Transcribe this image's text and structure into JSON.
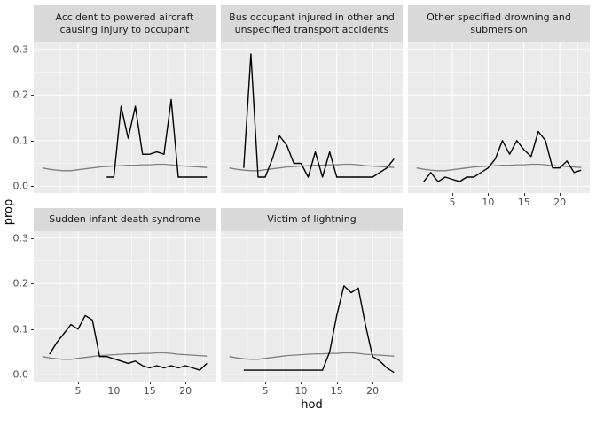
{
  "chart_data": {
    "type": "line",
    "title": "",
    "xlabel": "hod",
    "ylabel": "prop",
    "xlim": [
      -1.2,
      24.2
    ],
    "ylim": [
      -0.015,
      0.315
    ],
    "x_ticks": [
      5,
      10,
      15,
      20
    ],
    "x_tick_labels": [
      "5",
      "10",
      "15",
      "20"
    ],
    "y_ticks": [
      0,
      0.1,
      0.2,
      0.3
    ],
    "y_tick_labels": [
      "0.0",
      "0.1",
      "0.2",
      "0.3"
    ],
    "grid": true,
    "legend": "none",
    "overall_series": {
      "color": "#808080",
      "x": [
        0,
        1,
        2,
        3,
        4,
        5,
        6,
        7,
        8,
        9,
        10,
        11,
        12,
        13,
        14,
        15,
        16,
        17,
        18,
        19,
        20,
        21,
        22,
        23
      ],
      "y": [
        0.04,
        0.037,
        0.035,
        0.034,
        0.034,
        0.036,
        0.038,
        0.04,
        0.042,
        0.043,
        0.044,
        0.045,
        0.046,
        0.046,
        0.047,
        0.047,
        0.048,
        0.048,
        0.047,
        0.045,
        0.044,
        0.043,
        0.042,
        0.041
      ]
    },
    "facets": [
      {
        "label": "Accident to powered aircraft causing injury to occupant",
        "series": {
          "color": "#000000",
          "x": [
            9,
            10,
            11,
            12,
            13,
            14,
            15,
            16,
            17,
            18,
            19,
            20,
            21,
            22,
            23
          ],
          "y": [
            0.02,
            0.02,
            0.175,
            0.105,
            0.175,
            0.07,
            0.07,
            0.075,
            0.07,
            0.19,
            0.02,
            0.02,
            0.02,
            0.02,
            0.02
          ]
        }
      },
      {
        "label": "Bus occupant injured in other and unspecified transport accidents",
        "series": {
          "color": "#000000",
          "x": [
            2,
            3,
            4,
            5,
            6,
            7,
            8,
            9,
            10,
            11,
            12,
            13,
            14,
            15,
            16,
            17,
            18,
            19,
            20,
            21,
            22,
            23
          ],
          "y": [
            0.04,
            0.29,
            0.02,
            0.02,
            0.06,
            0.11,
            0.09,
            0.05,
            0.05,
            0.02,
            0.075,
            0.02,
            0.075,
            0.02,
            0.02,
            0.02,
            0.02,
            0.02,
            0.02,
            0.03,
            0.04,
            0.06
          ]
        }
      },
      {
        "label": "Other specified drowning and submersion",
        "series": {
          "color": "#000000",
          "x": [
            1,
            2,
            3,
            4,
            5,
            6,
            7,
            8,
            9,
            10,
            11,
            12,
            13,
            14,
            15,
            16,
            17,
            18,
            19,
            20,
            21,
            22,
            23
          ],
          "y": [
            0.01,
            0.03,
            0.01,
            0.02,
            0.015,
            0.01,
            0.02,
            0.02,
            0.03,
            0.04,
            0.06,
            0.1,
            0.07,
            0.1,
            0.08,
            0.065,
            0.12,
            0.1,
            0.04,
            0.04,
            0.055,
            0.03,
            0.035
          ]
        }
      },
      {
        "label": "Sudden infant death syndrome",
        "series": {
          "color": "#000000",
          "x": [
            1,
            2,
            3,
            4,
            5,
            6,
            7,
            8,
            9,
            10,
            11,
            12,
            13,
            14,
            15,
            16,
            17,
            18,
            19,
            20,
            21,
            22,
            23
          ],
          "y": [
            0.045,
            0.07,
            0.09,
            0.11,
            0.1,
            0.13,
            0.12,
            0.04,
            0.04,
            0.035,
            0.03,
            0.025,
            0.03,
            0.02,
            0.015,
            0.02,
            0.015,
            0.02,
            0.015,
            0.02,
            0.015,
            0.01,
            0.025
          ]
        }
      },
      {
        "label": "Victim of lightning",
        "series": {
          "color": "#000000",
          "x": [
            2,
            3,
            4,
            5,
            6,
            7,
            8,
            9,
            10,
            11,
            12,
            13,
            14,
            15,
            16,
            17,
            18,
            19,
            20,
            21,
            22,
            23
          ],
          "y": [
            0.01,
            0.01,
            0.01,
            0.01,
            0.01,
            0.01,
            0.01,
            0.01,
            0.01,
            0.01,
            0.01,
            0.01,
            0.05,
            0.13,
            0.195,
            0.18,
            0.19,
            0.11,
            0.04,
            0.03,
            0.015,
            0.005
          ]
        }
      }
    ]
  },
  "colors": {
    "plot_bg": "#FFFFFF",
    "panel_bg": "#EBEBEB",
    "strip_bg": "#D9D9D9",
    "grid_major": "#FFFFFF",
    "grid_minor": "#FFFFFF",
    "axis_text": "#4D4D4D",
    "tick_mark": "#333333",
    "line_black": "#000000",
    "line_gray": "#808080"
  }
}
